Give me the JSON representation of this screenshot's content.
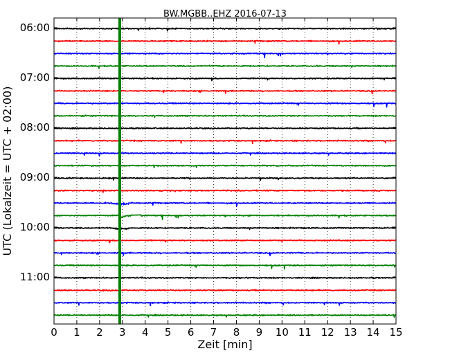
{
  "chart_data": {
    "type": "line",
    "title": "BW.MGBB..EHZ 2016-07-13",
    "xlabel": "Zeit  [min]",
    "ylabel": "UTC (Lokalzeit = UTC + 02:00)",
    "xlim": [
      0,
      15
    ],
    "x_ticks": [
      "0",
      "1",
      "2",
      "3",
      "4",
      "5",
      "6",
      "7",
      "8",
      "9",
      "10",
      "11",
      "12",
      "13",
      "14",
      "15"
    ],
    "y_tick_labels": [
      "06:00",
      "07:00",
      "08:00",
      "09:00",
      "10:00",
      "11:00"
    ],
    "grid": "vertical dotted",
    "trace_interval_minutes": 15,
    "trace_colors": [
      "#000000",
      "#ff0000",
      "#0000ff",
      "#008000"
    ],
    "traces": [
      {
        "start": "06:00",
        "color": "#000000"
      },
      {
        "start": "06:15",
        "color": "#ff0000"
      },
      {
        "start": "06:30",
        "color": "#0000ff"
      },
      {
        "start": "06:45",
        "color": "#008000"
      },
      {
        "start": "07:00",
        "color": "#000000"
      },
      {
        "start": "07:15",
        "color": "#ff0000"
      },
      {
        "start": "07:30",
        "color": "#0000ff"
      },
      {
        "start": "07:45",
        "color": "#008000"
      },
      {
        "start": "08:00",
        "color": "#000000"
      },
      {
        "start": "08:15",
        "color": "#ff0000"
      },
      {
        "start": "08:30",
        "color": "#0000ff"
      },
      {
        "start": "08:45",
        "color": "#008000"
      },
      {
        "start": "09:00",
        "color": "#000000"
      },
      {
        "start": "09:15",
        "color": "#ff0000"
      },
      {
        "start": "09:30",
        "color": "#0000ff"
      },
      {
        "start": "09:45",
        "color": "#008000"
      },
      {
        "start": "10:00",
        "color": "#000000"
      },
      {
        "start": "10:15",
        "color": "#ff0000"
      },
      {
        "start": "10:30",
        "color": "#0000ff"
      },
      {
        "start": "10:45",
        "color": "#008000"
      },
      {
        "start": "11:00",
        "color": "#000000"
      },
      {
        "start": "11:15",
        "color": "#ff0000"
      },
      {
        "start": "11:30",
        "color": "#0000ff"
      },
      {
        "start": "11:45",
        "color": "#008000"
      }
    ],
    "event_marker": {
      "x": 2.9,
      "color": "#008000"
    }
  }
}
